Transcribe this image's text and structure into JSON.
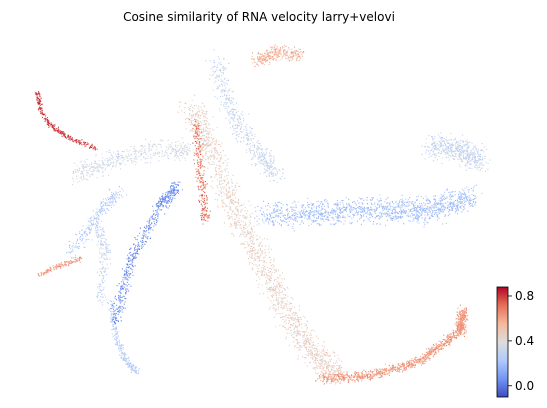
{
  "chart_data": {
    "type": "scatter",
    "title": "Cosine similarity of RNA velocity larry+velovi",
    "xlabel": "",
    "ylabel": "",
    "grid": false,
    "axes_visible": false,
    "colormap": "coolwarm",
    "colormap_stops": [
      "#3b4cc0",
      "#7396f5",
      "#b0cbfc",
      "#dddcdc",
      "#f6b89c",
      "#e57058",
      "#b40426"
    ],
    "colorbar": {
      "range": [
        -0.1,
        0.88
      ],
      "ticks": [
        0.0,
        0.4,
        0.8
      ],
      "tick_labels": [
        "0.0",
        "0.4",
        "0.8"
      ],
      "placement": "bottom-right"
    },
    "regions": [
      {
        "name": "",
        "value_mean": 0.8,
        "value_spread": 0.08
      },
      {
        "name": "",
        "value_mean": 0.62,
        "value_spread": 0.1
      },
      {
        "name": "",
        "value_mean": 0.25,
        "value_spread": 0.1
      },
      {
        "name": "",
        "value_mean": 0.05,
        "value_spread": 0.1
      },
      {
        "name": "",
        "value_mean": 0.35,
        "value_spread": 0.12
      },
      {
        "name": "",
        "value_mean": 0.22,
        "value_spread": 0.12
      },
      {
        "name": "",
        "value_mean": 0.3,
        "value_spread": 0.1
      },
      {
        "name": "",
        "value_mean": 0.45,
        "value_spread": 0.12
      },
      {
        "name": "",
        "value_mean": 0.3,
        "value_spread": 0.1
      },
      {
        "name": "",
        "value_mean": 0.55,
        "value_spread": 0.15
      },
      {
        "name": "",
        "value_mean": 0.62,
        "value_spread": 0.12
      },
      {
        "name": "",
        "value_mean": 0.2,
        "value_spread": 0.12
      },
      {
        "name": "",
        "value_mean": 0.7,
        "value_spread": 0.12
      },
      {
        "name": "",
        "value_mean": 0.3,
        "value_spread": 0.15
      }
    ]
  }
}
